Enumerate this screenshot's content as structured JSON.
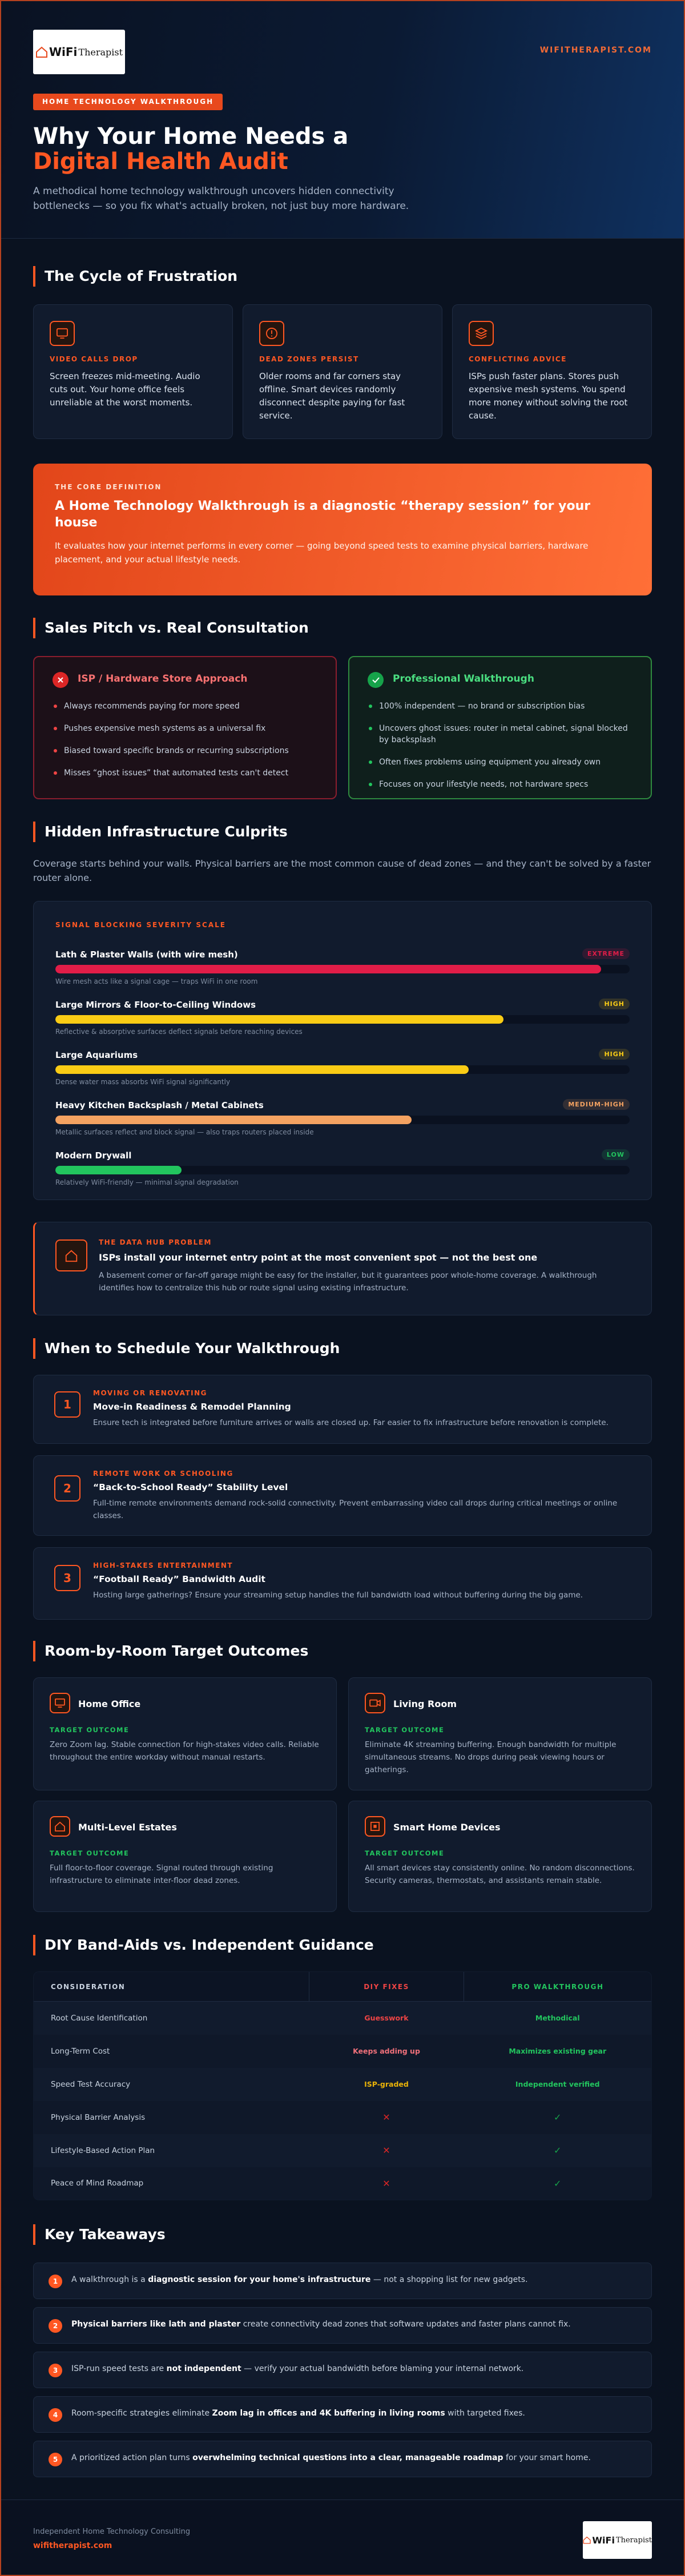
{
  "header": {
    "logo": {
      "brand": "WiFi",
      "name": "Therapist"
    },
    "site": "WIFITHERAPIST.COM",
    "badge": "HOME TECHNOLOGY WALKTHROUGH",
    "title_line1": "Why Your Home Needs a",
    "title_line2": "Digital Health Audit",
    "subtitle": "A methodical home technology walkthrough uncovers hidden connectivity bottlenecks — so you fix what's actually broken, not just buy more hardware."
  },
  "frustration": {
    "heading": "The Cycle of Frustration",
    "cards": [
      {
        "label": "VIDEO CALLS DROP",
        "text": "Screen freezes mid-meeting. Audio cuts out. Your home office feels unreliable at the worst moments."
      },
      {
        "label": "DEAD ZONES PERSIST",
        "text": "Older rooms and far corners stay offline. Smart devices randomly disconnect despite paying for fast service."
      },
      {
        "label": "CONFLICTING ADVICE",
        "text": "ISPs push faster plans. Stores push expensive mesh systems. You spend more money without solving the root cause."
      }
    ]
  },
  "definition": {
    "label": "THE CORE DEFINITION",
    "title": "A Home Technology Walkthrough is a diagnostic “therapy session” for your house",
    "text": "It evaluates how your internet performs in every corner — going beyond speed tests to examine physical barriers, hardware placement, and your actual lifestyle needs."
  },
  "comparison": {
    "heading": "Sales Pitch vs. Real Consultation",
    "isp": {
      "title": "ISP / Hardware Store Approach",
      "items": [
        "Always recommends paying for more speed",
        "Pushes expensive mesh systems as a universal fix",
        "Biased toward specific brands or recurring subscriptions",
        "Misses “ghost issues” that automated tests can't detect"
      ]
    },
    "pro": {
      "title": "Professional Walkthrough",
      "items": [
        "100% independent — no brand or subscription bias",
        "Uncovers ghost issues: router in metal cabinet, signal blocked by backsplash",
        "Often fixes problems using equipment you already own",
        "Focuses on your lifestyle needs, not hardware specs"
      ]
    }
  },
  "culprits": {
    "heading": "Hidden Infrastructure Culprits",
    "intro": "Coverage starts behind your walls. Physical barriers are the most common cause of dead zones — and they can't be solved by a faster router alone.",
    "chart": {
      "type": "bar",
      "title": "SIGNAL BLOCKING SEVERITY SCALE",
      "xlim": [
        0,
        100
      ],
      "items": [
        {
          "name": "Lath & Plaster Walls (with wire mesh)",
          "severity": "EXTREME",
          "note": "Wire mesh acts like a signal cage — traps WiFi in one room",
          "level": 95,
          "color": "#e11d48"
        },
        {
          "name": "Large Mirrors & Floor-to-Ceiling Windows",
          "severity": "HIGH",
          "note": "Reflective & absorptive surfaces deflect signals before reaching devices",
          "level": 78,
          "color": "#facc15"
        },
        {
          "name": "Large Aquariums",
          "severity": "HIGH",
          "note": "Dense water mass absorbs WiFi signal significantly",
          "level": 72,
          "color": "#facc15"
        },
        {
          "name": "Heavy Kitchen Backsplash / Metal Cabinets",
          "severity": "MEDIUM-HIGH",
          "note": "Metallic surfaces reflect and block signal — also traps routers placed inside",
          "level": 62,
          "color": "#f4a261"
        },
        {
          "name": "Modern Drywall",
          "severity": "LOW",
          "note": "Relatively WiFi-friendly — minimal signal degradation",
          "level": 22,
          "color": "#22c55e"
        }
      ]
    },
    "callout": {
      "label": "THE DATA HUB PROBLEM",
      "title": "ISPs install your internet entry point at the most convenient spot — not the best one",
      "text": "A basement corner or far-off garage might be easy for the installer, but it guarantees poor whole-home coverage. A walkthrough identifies how to centralize this hub or route signal using existing infrastructure."
    }
  },
  "schedule": {
    "heading": "When to Schedule Your Walkthrough",
    "items": [
      {
        "number": "1",
        "tag": "MOVING OR RENOVATING",
        "title": "Move-in Readiness & Remodel Planning",
        "text": "Ensure tech is integrated before furniture arrives or walls are closed up. Far easier to fix infrastructure before renovation is complete."
      },
      {
        "number": "2",
        "tag": "REMOTE WORK OR SCHOOLING",
        "title": "“Back-to-School Ready” Stability Level",
        "text": "Full-time remote environments demand rock-solid connectivity. Prevent embarrassing video call drops during critical meetings or online classes."
      },
      {
        "number": "3",
        "tag": "HIGH-STAKES ENTERTAINMENT",
        "title": "“Football Ready” Bandwidth Audit",
        "text": "Hosting large gatherings? Ensure your streaming setup handles the full bandwidth load without buffering during the big game."
      }
    ]
  },
  "rooms": {
    "heading": "Room-by-Room Target Outcomes",
    "outcome_label": "TARGET OUTCOME",
    "cards": [
      {
        "title": "Home Office",
        "text": "Zero Zoom lag. Stable connection for high-stakes video calls. Reliable throughout the entire workday without manual restarts."
      },
      {
        "title": "Living Room",
        "text": "Eliminate 4K streaming buffering. Enough bandwidth for multiple simultaneous streams. No drops during peak viewing hours or gatherings."
      },
      {
        "title": "Multi-Level Estates",
        "text": "Full floor-to-floor coverage. Signal routed through existing infrastructure to eliminate inter-floor dead zones."
      },
      {
        "title": "Smart Home Devices",
        "text": "All smart devices stay consistently online. No random disconnections. Security cameras, thermostats, and assistants remain stable."
      }
    ]
  },
  "table": {
    "heading": "DIY Band-Aids vs. Independent Guidance",
    "columns": [
      "CONSIDERATION",
      "DIY FIXES",
      "PRO WALKTHROUGH"
    ],
    "rows": [
      [
        "Root Cause Identification",
        "Guesswork",
        "Methodical"
      ],
      [
        "Long-Term Cost",
        "Keeps adding up",
        "Maximizes existing gear"
      ],
      [
        "Speed Test Accuracy",
        "ISP-graded",
        "Independent verified"
      ],
      [
        "Physical Barrier Analysis",
        "✕",
        "✓"
      ],
      [
        "Lifestyle-Based Action Plan",
        "✕",
        "✓"
      ],
      [
        "Peace of Mind Roadmap",
        "✕",
        "✓"
      ]
    ]
  },
  "takeaways": {
    "heading": "Key Takeaways",
    "items": [
      {
        "number": "1",
        "parts": [
          {
            "text": "A walkthrough is a "
          },
          {
            "text": "diagnostic session for your home's infrastructure",
            "strong": true
          },
          {
            "text": " — not a shopping list for new gadgets."
          }
        ]
      },
      {
        "number": "2",
        "parts": [
          {
            "text": "Physical barriers like lath and plaster",
            "strong": true
          },
          {
            "text": " create connectivity dead zones that software updates and faster plans cannot fix."
          }
        ]
      },
      {
        "number": "3",
        "parts": [
          {
            "text": "ISP-run speed tests are "
          },
          {
            "text": "not independent",
            "strong": true
          },
          {
            "text": " — verify your actual bandwidth before blaming your internal network."
          }
        ]
      },
      {
        "number": "4",
        "parts": [
          {
            "text": "Room-specific strategies eliminate "
          },
          {
            "text": "Zoom lag in offices and 4K buffering in living rooms",
            "strong": true
          },
          {
            "text": " with targeted fixes."
          }
        ]
      },
      {
        "number": "5",
        "parts": [
          {
            "text": "A prioritized action plan turns "
          },
          {
            "text": "overwhelming technical questions into a clear, manageable roadmap",
            "strong": true
          },
          {
            "text": " for your smart home."
          }
        ]
      }
    ]
  },
  "footer": {
    "tagline": "Independent Home Technology Consulting",
    "site": "wifitherapist.com"
  }
}
